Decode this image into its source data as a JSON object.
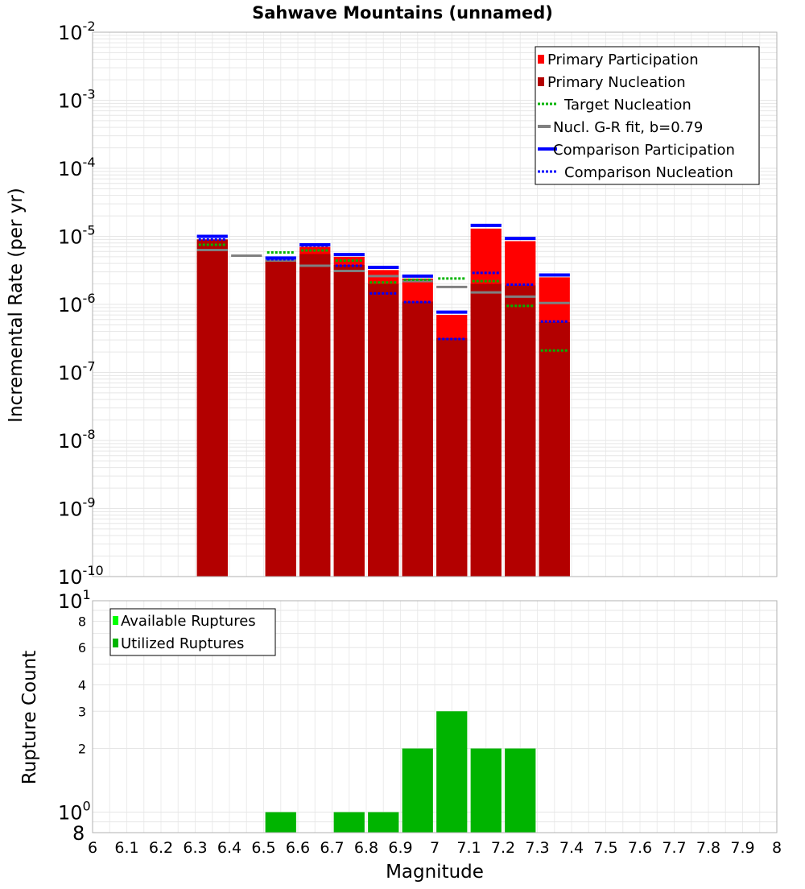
{
  "chart_data": [
    {
      "type": "bar",
      "title": "Sahwave Mountains (unnamed)",
      "ylabel": "Incremental Rate (per yr)",
      "y_scale": "log",
      "ylim": [
        1e-10,
        0.01
      ],
      "xlim": [
        6,
        8
      ],
      "y_tick_labels": [
        {
          "value": 1e-10,
          "mantissa": "10",
          "exp": "-10"
        },
        {
          "value": 1e-09,
          "mantissa": "10",
          "exp": "-9"
        },
        {
          "value": 1e-08,
          "mantissa": "10",
          "exp": "-8"
        },
        {
          "value": 1e-07,
          "mantissa": "10",
          "exp": "-7"
        },
        {
          "value": 1e-06,
          "mantissa": "10",
          "exp": "-6"
        },
        {
          "value": 1e-05,
          "mantissa": "10",
          "exp": "-5"
        },
        {
          "value": 0.0001,
          "mantissa": "10",
          "exp": "-4"
        },
        {
          "value": 0.001,
          "mantissa": "10",
          "exp": "-3"
        },
        {
          "value": 0.01,
          "mantissa": "10",
          "exp": "-2"
        }
      ],
      "bin_width": 0.1,
      "legend_position": "top-right",
      "legend": [
        {
          "label": "Primary Participation",
          "color": "#ff0000",
          "style": "box"
        },
        {
          "label": "Primary Nucleation",
          "color": "#b30000",
          "style": "box"
        },
        {
          "label": "Target Nucleation",
          "color": "#00b400",
          "style": "dotted"
        },
        {
          "label": "Nucl. G-R fit, b=0.79",
          "color": "#808080",
          "style": "solid"
        },
        {
          "label": "Comparison Participation",
          "color": "#0000ff",
          "style": "solid"
        },
        {
          "label": "Comparison Nucleation",
          "color": "#0000ff",
          "style": "dotted"
        }
      ],
      "colors": {
        "participation": "#ff0000",
        "nucleation": "#b30000",
        "target": "#00b400",
        "gr_fit": "#808080",
        "comparison": "#0000ff",
        "dark_line": "#3a0000"
      },
      "series": [
        {
          "name": "Primary Participation",
          "x": [
            6.35,
            6.55,
            6.65,
            6.75,
            6.85,
            6.95,
            7.05,
            7.15,
            7.25,
            7.35
          ],
          "values": [
            9e-06,
            4.5e-06,
            7e-06,
            5e-06,
            3.2e-06,
            2.4e-06,
            7e-07,
            1.3e-05,
            8.5e-06,
            2.5e-06
          ]
        },
        {
          "name": "Primary Nucleation",
          "x": [
            6.35,
            6.55,
            6.65,
            6.75,
            6.85,
            6.95,
            7.05,
            7.15,
            7.25,
            7.35
          ],
          "values": [
            9e-06,
            4.5e-06,
            5.5e-06,
            3.8e-06,
            2e-06,
            1.1e-06,
            3.2e-07,
            2e-06,
            1.9e-06,
            5.5e-07
          ]
        },
        {
          "name": "Target Nucleation",
          "x": [
            6.35,
            6.55,
            6.65,
            6.75,
            6.85,
            6.95,
            7.05,
            7.15,
            7.25,
            7.35
          ],
          "values": [
            7.5e-06,
            5.8e-06,
            6.2e-06,
            4.4e-06,
            2.1e-06,
            2.3e-06,
            2.4e-06,
            2.2e-06,
            9.5e-07,
            2.1e-07
          ]
        },
        {
          "name": "Nucl. G-R fit, b=0.79",
          "x": [
            6.35,
            6.45,
            6.55,
            6.65,
            6.75,
            6.85,
            6.95,
            7.05,
            7.15,
            7.25,
            7.35
          ],
          "values": [
            6.3e-06,
            5.2e-06,
            4.4e-06,
            3.7e-06,
            3.1e-06,
            2.6e-06,
            2.2e-06,
            1.8e-06,
            1.5e-06,
            1.3e-06,
            1.05e-06
          ]
        },
        {
          "name": "Comparison Participation",
          "x": [
            6.35,
            6.55,
            6.65,
            6.75,
            6.85,
            6.95,
            7.05,
            7.15,
            7.25,
            7.35
          ],
          "values": [
            1e-05,
            4.8e-06,
            7.5e-06,
            5.4e-06,
            3.5e-06,
            2.6e-06,
            7.7e-07,
            1.45e-05,
            9.3e-06,
            2.7e-06
          ]
        },
        {
          "name": "Comparison Nucleation",
          "x": [
            6.35,
            6.55,
            6.65,
            6.75,
            6.85,
            6.95,
            7.05,
            7.15,
            7.25,
            7.35
          ],
          "values": [
            9e-06,
            4.6e-06,
            7.3e-06,
            3.7e-06,
            1.45e-06,
            1.08e-06,
            3.1e-07,
            2.9e-06,
            1.95e-06,
            5.6e-07
          ]
        }
      ]
    },
    {
      "type": "bar",
      "xlabel": "Magnitude",
      "ylabel": "Rupture Count",
      "y_scale": "log",
      "ylim": [
        0.8,
        10
      ],
      "xlim": [
        6,
        8
      ],
      "x_tick_labels": [
        "6",
        "6.1",
        "6.2",
        "6.3",
        "6.4",
        "6.5",
        "6.6",
        "6.7",
        "6.8",
        "6.9",
        "7",
        "7.1",
        "7.2",
        "7.3",
        "7.4",
        "7.5",
        "7.6",
        "7.7",
        "7.8",
        "7.9",
        "8"
      ],
      "y_tick_labels": [
        {
          "value": 10,
          "mantissa": "10",
          "exp": "1",
          "major": true
        },
        {
          "value": 8,
          "mantissa": "8"
        },
        {
          "value": 6,
          "mantissa": "6"
        },
        {
          "value": 4,
          "mantissa": "4"
        },
        {
          "value": 3,
          "mantissa": "3"
        },
        {
          "value": 2,
          "mantissa": "2"
        },
        {
          "value": 1,
          "mantissa": "10",
          "exp": "0",
          "major": true
        },
        {
          "value": 0.8,
          "mantissa": "8",
          "major": true
        }
      ],
      "legend_position": "top-left",
      "legend": [
        {
          "label": "Available Ruptures",
          "color": "#00ff00"
        },
        {
          "label": "Utilized Ruptures",
          "color": "#00b400"
        }
      ],
      "series": [
        {
          "name": "Utilized Ruptures",
          "x": [
            6.55,
            6.75,
            6.85,
            6.95,
            7.05,
            7.15,
            7.25
          ],
          "values": [
            1,
            1,
            1,
            2,
            3,
            2,
            2
          ]
        }
      ]
    }
  ]
}
